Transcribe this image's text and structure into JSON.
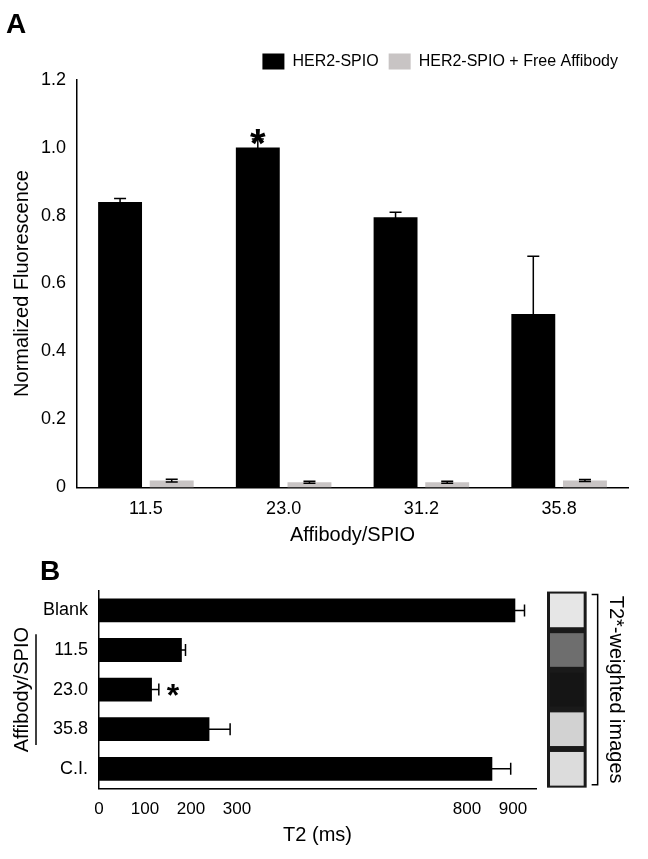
{
  "chart_data": [
    {
      "type": "bar",
      "title": "A",
      "categories": [
        "11.5",
        "23.0",
        "31.2",
        "35.8"
      ],
      "series": [
        {
          "name": "HER2-SPIO",
          "color": "#000000",
          "values": [
            0.84,
            1.0,
            0.795,
            0.51
          ],
          "errors": [
            0.01,
            0.025,
            0.015,
            0.17
          ]
        },
        {
          "name": "HER2-SPIO + Free Affibody",
          "color": "#c8c4c4",
          "values": [
            0.02,
            0.015,
            0.015,
            0.02
          ],
          "errors": [
            0.004,
            0.003,
            0.003,
            0.003
          ]
        }
      ],
      "x_label": "Affibody/SPIO",
      "y_label": "Normalized Fluorescence",
      "ylim": [
        0,
        1.2
      ],
      "yticks": [
        0,
        0.2,
        0.4,
        0.6,
        0.8,
        {
          "value": 1,
          "label": "1.0"
        },
        1.2
      ],
      "grid": false,
      "legend": "upper right",
      "annotations": [
        {
          "text": "*",
          "category": "23.0"
        }
      ]
    },
    {
      "type": "bar",
      "title": "B",
      "orientation": "horizontal",
      "categories": [
        "Blank",
        "11.5",
        "23.0",
        "35.8",
        "C.I."
      ],
      "values": [
        905,
        180,
        115,
        240,
        855
      ],
      "errors": [
        20,
        8,
        15,
        45,
        40
      ],
      "color": "#000000",
      "x_label": "T2 (ms)",
      "xlim": [
        0,
        950
      ],
      "xticks": [
        0,
        100,
        200,
        300,
        800,
        900
      ],
      "grid": false,
      "annotations": [
        {
          "text": "*",
          "category": "23.0"
        },
        {
          "text": "Affibody/SPIO",
          "categories": [
            "11.5",
            "35.8"
          ]
        },
        {
          "text": "T2*-weighted images",
          "categories": [
            "Blank",
            "C.I."
          ]
        }
      ]
    }
  ]
}
